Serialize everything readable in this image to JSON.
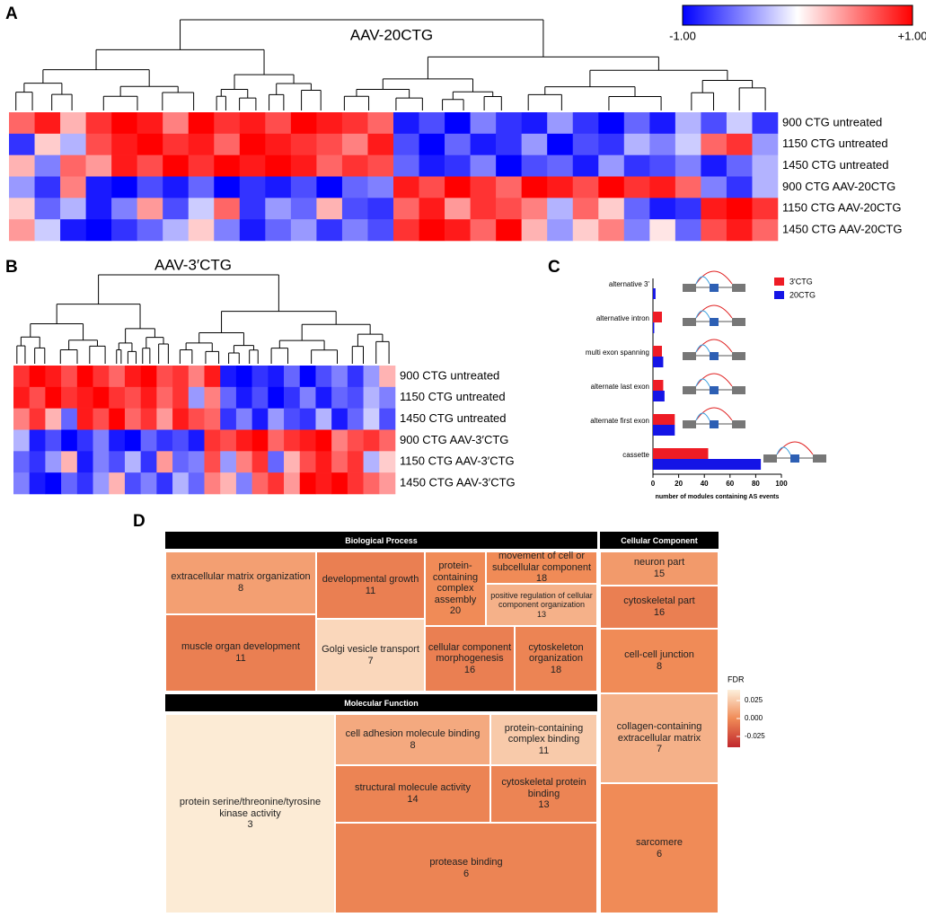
{
  "chart_data": [
    {
      "panel_label": "A",
      "type": "heatmap",
      "title": "AAV-20CTG",
      "rows": [
        "900 CTG untreated",
        "1150 CTG untreated",
        "1450 CTG untreated",
        "900 CTG AAV-20CTG",
        "1150 CTG AAV-20CTG",
        "1450 CTG AAV-20CTG"
      ],
      "values": [
        [
          0.6,
          0.9,
          0.3,
          0.8,
          1,
          0.9,
          0.5,
          1,
          0.8,
          0.9,
          0.7,
          1,
          0.9,
          0.8,
          0.6,
          -0.9,
          -0.7,
          -1,
          -0.5,
          -0.8,
          -0.9,
          -0.4,
          -0.8,
          -1,
          -0.6,
          -0.9,
          -0.3,
          -0.7,
          -0.2,
          -0.8
        ],
        [
          -0.8,
          0.2,
          -0.3,
          0.7,
          0.9,
          1,
          0.8,
          0.9,
          0.6,
          1,
          0.9,
          0.8,
          0.7,
          0.5,
          0.9,
          -0.7,
          -1,
          -0.6,
          -0.9,
          -0.8,
          -0.4,
          -1,
          -0.7,
          -0.8,
          -0.3,
          -0.5,
          -0.2,
          0.6,
          0.8,
          -0.4
        ],
        [
          0.3,
          -0.5,
          0.6,
          0.4,
          0.9,
          0.7,
          1,
          0.8,
          1,
          0.9,
          1,
          0.9,
          0.6,
          0.8,
          0.7,
          -0.6,
          -0.9,
          -0.8,
          -0.5,
          -1,
          -0.7,
          -0.6,
          -0.9,
          -0.4,
          -0.8,
          -0.7,
          -0.5,
          -0.9,
          -0.6,
          -0.3
        ],
        [
          -0.4,
          -0.8,
          0.5,
          -0.9,
          -1,
          -0.7,
          -0.9,
          -0.6,
          -1,
          -0.8,
          -0.9,
          -0.7,
          -1,
          -0.6,
          -0.5,
          0.9,
          0.7,
          1,
          0.8,
          0.6,
          1,
          0.9,
          0.7,
          1,
          0.8,
          0.9,
          0.6,
          -0.5,
          -0.8,
          -0.3
        ],
        [
          0.2,
          -0.6,
          -0.3,
          -0.9,
          -0.5,
          0.4,
          -0.7,
          -0.2,
          0.6,
          -0.8,
          -0.4,
          -0.6,
          0.3,
          -0.7,
          -0.8,
          0.6,
          0.9,
          0.4,
          0.8,
          0.7,
          0.5,
          -0.3,
          0.6,
          0.2,
          -0.6,
          -0.9,
          -0.8,
          0.9,
          1,
          0.8
        ],
        [
          0.4,
          -0.2,
          -0.9,
          -1,
          -0.8,
          -0.6,
          -0.3,
          0.2,
          -0.5,
          -0.9,
          -0.6,
          -0.4,
          -0.8,
          -0.5,
          -0.7,
          0.8,
          1,
          0.9,
          0.6,
          1,
          0.3,
          -0.4,
          0.2,
          0.5,
          -0.5,
          0.1,
          -0.6,
          0.7,
          0.9,
          0.6
        ]
      ],
      "colorscale": [
        "#0000ff",
        "#ffffff",
        "#ff0000"
      ],
      "clim": [
        -1,
        1
      ],
      "colorbar_ticks": [
        {
          "value": -1,
          "label": "-1.00"
        },
        {
          "value": 1,
          "label": "+1.00"
        }
      ]
    },
    {
      "panel_label": "B",
      "type": "heatmap",
      "title": "AAV-3′CTG",
      "rows": [
        "900 CTG untreated",
        "1150 CTG untreated",
        "1450 CTG untreated",
        "900 CTG AAV-3′CTG",
        "1150 CTG AAV-3′CTG",
        "1450 CTG AAV-3′CTG"
      ],
      "values": [
        [
          0.8,
          1,
          0.9,
          0.7,
          1,
          0.8,
          0.6,
          0.9,
          1,
          0.7,
          0.8,
          0.5,
          0.9,
          -0.9,
          -1,
          -0.8,
          -0.9,
          -0.6,
          -1,
          -0.7,
          -0.5,
          -0.8,
          -0.4,
          0.3
        ],
        [
          0.9,
          0.7,
          1,
          0.8,
          0.9,
          1,
          0.8,
          0.7,
          0.9,
          0.6,
          0.8,
          -0.4,
          0.5,
          -0.6,
          -0.9,
          -0.7,
          -1,
          -0.8,
          -0.5,
          -0.9,
          -0.6,
          -0.7,
          -0.3,
          -0.5
        ],
        [
          0.5,
          0.8,
          0.3,
          -0.6,
          0.9,
          0.7,
          1,
          0.6,
          0.8,
          0.4,
          0.9,
          0.7,
          0.6,
          -0.8,
          -0.5,
          -0.9,
          -0.4,
          -0.7,
          -0.8,
          -0.3,
          -0.9,
          -0.6,
          -0.2,
          -0.7
        ],
        [
          -0.3,
          -0.9,
          -0.7,
          -1,
          -0.8,
          -0.5,
          -0.9,
          -1,
          -0.6,
          -0.8,
          -0.7,
          -0.9,
          0.8,
          0.7,
          0.9,
          1,
          0.6,
          0.8,
          0.9,
          1,
          0.5,
          0.7,
          0.8,
          0.6
        ],
        [
          -0.6,
          -0.8,
          -0.4,
          0.3,
          -0.9,
          -0.5,
          -0.7,
          -0.3,
          -0.8,
          0.4,
          -0.6,
          -0.5,
          0.7,
          -0.4,
          0.5,
          0.8,
          -0.6,
          0.3,
          0.7,
          0.9,
          0.6,
          0.8,
          -0.3,
          0.2
        ],
        [
          -0.5,
          -0.9,
          -1,
          -0.6,
          -0.8,
          -0.4,
          0.3,
          -0.7,
          -0.5,
          -0.8,
          -0.3,
          -0.6,
          0.5,
          0.3,
          -0.5,
          0.6,
          0.8,
          0.4,
          1,
          0.9,
          1,
          0.8,
          0.6,
          0.4
        ]
      ],
      "colorscale": [
        "#0000ff",
        "#ffffff",
        "#ff0000"
      ],
      "clim": [
        -1,
        1
      ]
    },
    {
      "panel_label": "C",
      "type": "bar",
      "orientation": "horizontal",
      "categories": [
        "alternative 3'",
        "alternative intron",
        "multi exon spanning",
        "alternate last exon",
        "alternate first exon",
        "cassette"
      ],
      "series": [
        {
          "name": "3'CTG",
          "color": "#ee1c25",
          "values": [
            0,
            7,
            7,
            8,
            17,
            43
          ]
        },
        {
          "name": "20CTG",
          "color": "#1414e6",
          "values": [
            2,
            1,
            8,
            9,
            17,
            84
          ]
        }
      ],
      "xlim": [
        0,
        100
      ],
      "xticks": [
        0,
        20,
        40,
        60,
        80,
        100
      ],
      "xlabel": "number of modules containing AS events"
    },
    {
      "panel_label": "D",
      "type": "treemap",
      "groups": [
        {
          "name": "Biological Process",
          "cells": [
            {
              "label": "extracellular matrix organization",
              "count": 8,
              "fdr": 0.008
            },
            {
              "label": "muscle organ development",
              "count": 11,
              "fdr": -0.005
            },
            {
              "label": "developmental growth",
              "count": 11,
              "fdr": -0.005
            },
            {
              "label": "Golgi vesicle transport",
              "count": 7,
              "fdr": 0.03
            },
            {
              "label": "protein-containing complex assembly",
              "count": 20,
              "fdr": 0
            },
            {
              "label": "movement of cell or subcellular component",
              "count": 18,
              "fdr": 0
            },
            {
              "label": "positive regulation of cellular component organization",
              "count": 13,
              "fdr": 0.015
            },
            {
              "label": "cellular component morphogenesis",
              "count": 16,
              "fdr": -0.005
            },
            {
              "label": "cytoskeleton organization",
              "count": 18,
              "fdr": -0.003
            }
          ]
        },
        {
          "name": "Molecular Function",
          "cells": [
            {
              "label": "protein serine/threonine/tyrosine kinase activity",
              "count": 3,
              "fdr": 0.038
            },
            {
              "label": "cell adhesion molecule binding",
              "count": 8,
              "fdr": 0.012
            },
            {
              "label": "protein-containing complex binding",
              "count": 11,
              "fdr": 0.025
            },
            {
              "label": "structural molecule activity",
              "count": 14,
              "fdr": -0.003
            },
            {
              "label": "cytoskeletal protein binding",
              "count": 13,
              "fdr": -0.003
            },
            {
              "label": "protease binding",
              "count": 6,
              "fdr": -0.003
            }
          ]
        },
        {
          "name": "Cellular Component",
          "cells": [
            {
              "label": "neuron part",
              "count": 15,
              "fdr": 0.006
            },
            {
              "label": "cytoskeletal part",
              "count": 16,
              "fdr": -0.005
            },
            {
              "label": "cell-cell junction",
              "count": 8,
              "fdr": 0
            },
            {
              "label": "collagen-containing extracellular matrix",
              "count": 7,
              "fdr": 0.015
            },
            {
              "label": "sarcomere",
              "count": 6,
              "fdr": 0
            }
          ]
        }
      ],
      "colorscale": [
        "#c1272d",
        "#f08b57",
        "#fdf0dc"
      ],
      "clim": [
        -0.04,
        0.04
      ],
      "colorbar_title": "FDR",
      "colorbar_ticks": [
        0.025,
        {
          "value": 0,
          "label": "0.000"
        },
        -0.025
      ]
    }
  ]
}
